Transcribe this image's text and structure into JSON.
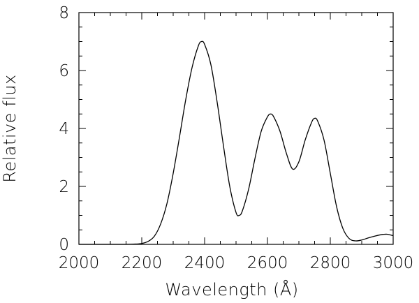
{
  "chart_data": {
    "type": "line",
    "title": "",
    "xlabel": "Wavelength (Å)",
    "ylabel": "Relative flux",
    "xlim": [
      2000,
      3000
    ],
    "ylim": [
      0,
      8
    ],
    "xticks": [
      "2000",
      "2200",
      "2400",
      "2600",
      "2800",
      "3000"
    ],
    "yticks": [
      "0",
      "2",
      "4",
      "6",
      "8"
    ],
    "grid": false,
    "line_color": "#000000",
    "series": [
      {
        "x": [
          2000,
          2050,
          2100,
          2150,
          2180,
          2200,
          2220,
          2240,
          2260,
          2280,
          2300,
          2320,
          2340,
          2360,
          2380,
          2390,
          2400,
          2420,
          2440,
          2460,
          2480,
          2500,
          2510,
          2520,
          2540,
          2560,
          2580,
          2600,
          2610,
          2620,
          2640,
          2660,
          2680,
          2700,
          2720,
          2740,
          2750,
          2760,
          2780,
          2800,
          2820,
          2840,
          2860,
          2880,
          2900,
          2920,
          2940,
          2960,
          2980,
          3000
        ],
        "y": [
          0.0,
          0.0,
          0.0,
          0.0,
          0.01,
          0.03,
          0.1,
          0.28,
          0.7,
          1.4,
          2.45,
          3.7,
          5.0,
          6.1,
          6.85,
          7.0,
          6.9,
          6.2,
          4.9,
          3.4,
          2.0,
          1.1,
          1.0,
          1.15,
          1.9,
          2.95,
          3.9,
          4.4,
          4.5,
          4.4,
          3.9,
          3.15,
          2.6,
          2.85,
          3.6,
          4.2,
          4.35,
          4.25,
          3.6,
          2.45,
          1.3,
          0.55,
          0.2,
          0.12,
          0.15,
          0.22,
          0.28,
          0.33,
          0.35,
          0.3
        ]
      }
    ]
  }
}
